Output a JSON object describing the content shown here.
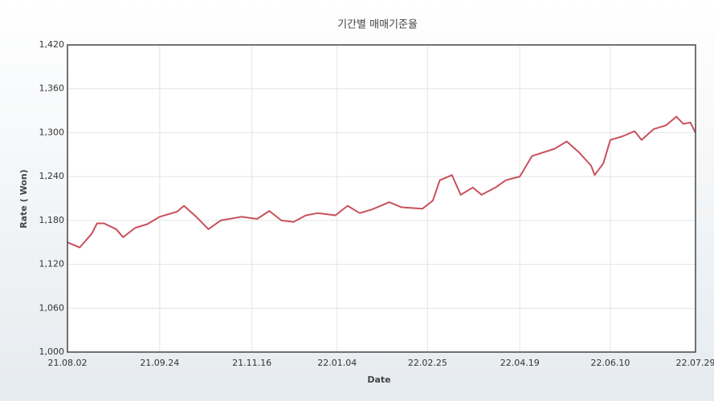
{
  "chart_data": {
    "type": "line",
    "title": "기간별 매매기준율",
    "x_label": "Date",
    "y_label": "Rate ( Won)",
    "x": [
      "21.08.02",
      "21.08.09",
      "21.08.16",
      "21.08.19",
      "21.08.23",
      "21.08.30",
      "21.09.03",
      "21.09.10",
      "21.09.17",
      "21.09.24",
      "21.10.04",
      "21.10.08",
      "21.10.15",
      "21.10.22",
      "21.10.29",
      "21.11.10",
      "21.11.19",
      "21.11.26",
      "21.12.03",
      "21.12.10",
      "21.12.17",
      "21.12.24",
      "22.01.03",
      "22.01.10",
      "22.01.17",
      "22.01.24",
      "22.02.03",
      "22.02.10",
      "22.02.22",
      "22.02.28",
      "22.03.04",
      "22.03.11",
      "22.03.16",
      "22.03.23",
      "22.03.28",
      "22.04.05",
      "22.04.11",
      "22.04.19",
      "22.04.26",
      "22.05.09",
      "22.05.16",
      "22.05.23",
      "22.05.30",
      "22.06.01",
      "22.06.06",
      "22.06.10",
      "22.06.17",
      "22.06.24",
      "22.06.28",
      "22.07.05",
      "22.07.12",
      "22.07.18",
      "22.07.22",
      "22.07.26",
      "22.07.29"
    ],
    "series": [
      {
        "name": "Rate",
        "color": "#c9505c",
        "values": [
          1150,
          1143,
          1162,
          1176,
          1176,
          1168,
          1157,
          1170,
          1175,
          1185,
          1192,
          1200,
          1185,
          1168,
          1180,
          1185,
          1182,
          1193,
          1180,
          1178,
          1187,
          1190,
          1187,
          1200,
          1190,
          1195,
          1205,
          1198,
          1196,
          1207,
          1235,
          1242,
          1215,
          1225,
          1215,
          1225,
          1235,
          1240,
          1268,
          1278,
          1288,
          1273,
          1255,
          1242,
          1258,
          1290,
          1295,
          1302,
          1290,
          1305,
          1310,
          1322,
          1312,
          1314,
          1300
        ]
      }
    ],
    "xlim": [
      "21.08.02",
      "22.07.29"
    ],
    "xticks": [
      "21.08.02",
      "21.09.24",
      "21.11.16",
      "22.01.04",
      "22.02.25",
      "22.04.19",
      "22.06.10",
      "22.07.29"
    ],
    "ylim": [
      1000,
      1420
    ],
    "yticks": [
      {
        "value": 1000,
        "label": "1,000"
      },
      {
        "value": 1060,
        "label": "1,060"
      },
      {
        "value": 1120,
        "label": "1,120"
      },
      {
        "value": 1180,
        "label": "1,180"
      },
      {
        "value": 1240,
        "label": "1,240"
      },
      {
        "value": 1300,
        "label": "1,300"
      },
      {
        "value": 1360,
        "label": "1,360"
      },
      {
        "value": 1420,
        "label": "1,420"
      }
    ],
    "grid": true
  }
}
